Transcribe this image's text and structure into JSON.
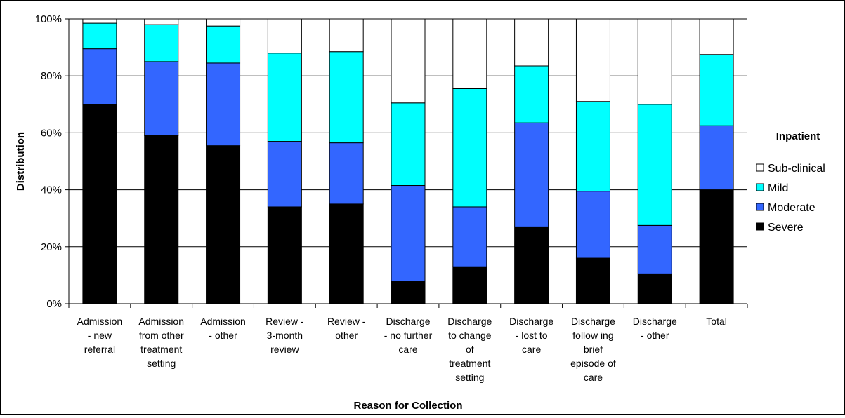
{
  "chart_data": {
    "type": "bar",
    "stacked": true,
    "percent": true,
    "categories": [
      [
        "Admission",
        "- new",
        "referral"
      ],
      [
        "Admission",
        "from other",
        "treatment",
        "setting"
      ],
      [
        "Admission",
        "- other"
      ],
      [
        "Review -",
        "3-month",
        "review"
      ],
      [
        "Review -",
        "other"
      ],
      [
        "Discharge",
        "- no further",
        "care"
      ],
      [
        "Discharge",
        "to change",
        "of",
        "treatment",
        "setting"
      ],
      [
        "Discharge",
        "- lost to",
        "care"
      ],
      [
        "Discharge",
        "follow ing",
        "brief",
        "episode of",
        "care"
      ],
      [
        "Discharge",
        "- other"
      ],
      [
        "Total"
      ]
    ],
    "series": [
      {
        "name": "Severe",
        "color": "#000000",
        "values": [
          70,
          59,
          55.5,
          34,
          35,
          8,
          13,
          27,
          16,
          10.5,
          40
        ]
      },
      {
        "name": "Moderate",
        "color": "#3366ff",
        "values": [
          19.5,
          26,
          29,
          23,
          21.5,
          33.5,
          21,
          36.5,
          23.5,
          17,
          22.5
        ]
      },
      {
        "name": "Mild",
        "color": "#00ffff",
        "values": [
          9,
          13,
          13,
          31,
          32,
          29,
          41.5,
          20,
          31.5,
          42.5,
          25
        ]
      },
      {
        "name": "Sub-clinical",
        "color": "#ffffff",
        "values": [
          1.5,
          2,
          2.5,
          12,
          11.5,
          29.5,
          24.5,
          16.5,
          29,
          30,
          12.5
        ]
      }
    ],
    "y_ticks": [
      "0%",
      "20%",
      "40%",
      "60%",
      "80%",
      "100%"
    ],
    "ylim": [
      0,
      100
    ],
    "ylabel": "Distribution",
    "xlabel": "Reason for Collection",
    "legend_title": "Inpatient",
    "legend_position": "right",
    "grid": true
  }
}
